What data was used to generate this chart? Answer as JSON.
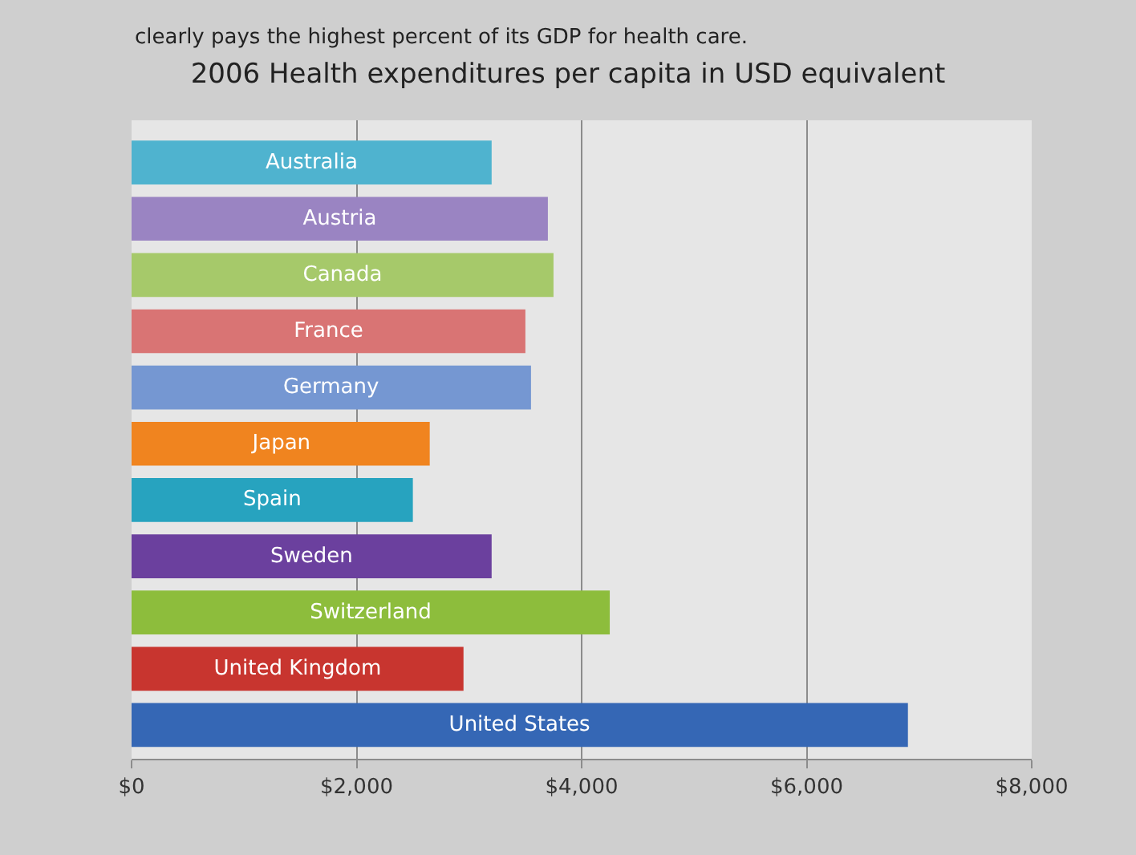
{
  "chart_data": {
    "type": "bar",
    "orientation": "horizontal",
    "title": "2006 Health expenditures per capita in USD equivalent",
    "annotations": [
      "clearly pays the highest percent of its GDP for health care."
    ],
    "categories": [
      "Australia",
      "Austria",
      "Canada",
      "France",
      "Germany",
      "Japan",
      "Spain",
      "Sweden",
      "Switzerland",
      "United Kingdom",
      "United States"
    ],
    "values": [
      3200,
      3700,
      3750,
      3500,
      3550,
      2650,
      2500,
      3200,
      4250,
      2950,
      6900
    ],
    "colors": [
      "#4fb3cf",
      "#9a84c2",
      "#a6c96a",
      "#d97474",
      "#7597d2",
      "#f0841f",
      "#27a3bf",
      "#6b409e",
      "#8dbd3c",
      "#c8352f",
      "#3567b5"
    ],
    "xlim": [
      0,
      8000
    ],
    "xticks": [
      {
        "value": 0,
        "label": "$0"
      },
      {
        "value": 2000,
        "label": "$2,000"
      },
      {
        "value": 4000,
        "label": "$4,000"
      },
      {
        "value": 6000,
        "label": "$6,000"
      },
      {
        "value": 8000,
        "label": "$8,000"
      }
    ],
    "grid": "x",
    "tick_labels": "x"
  }
}
